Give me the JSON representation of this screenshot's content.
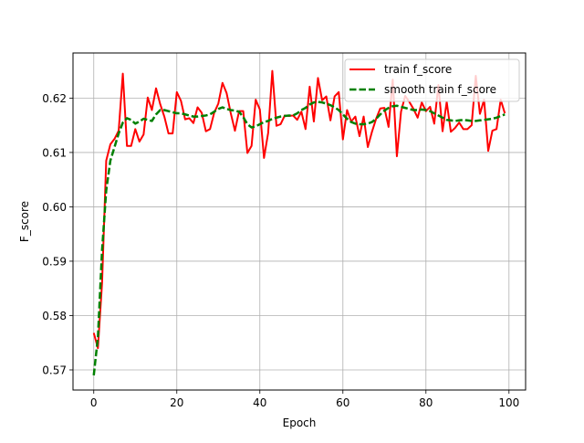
{
  "chart_data": {
    "type": "line",
    "title": "",
    "xlabel": "Epoch",
    "ylabel": "F_score",
    "xlim": [
      -5,
      104
    ],
    "ylim": [
      0.5663,
      0.6283
    ],
    "xticks": [
      0,
      20,
      40,
      60,
      80,
      100
    ],
    "xtick_labels": [
      "0",
      "20",
      "40",
      "60",
      "80",
      "100"
    ],
    "yticks": [
      0.57,
      0.58,
      0.59,
      0.6,
      0.61,
      0.62
    ],
    "ytick_labels": [
      "0.57",
      "0.58",
      "0.59",
      "0.60",
      "0.61",
      "0.62"
    ],
    "grid": true,
    "legend": "top-right",
    "x": [
      0,
      1,
      2,
      3,
      4,
      5,
      6,
      7,
      8,
      9,
      10,
      11,
      12,
      13,
      14,
      15,
      16,
      17,
      18,
      19,
      20,
      21,
      22,
      23,
      24,
      25,
      26,
      27,
      28,
      29,
      30,
      31,
      32,
      33,
      34,
      35,
      36,
      37,
      38,
      39,
      40,
      41,
      42,
      43,
      44,
      45,
      46,
      47,
      48,
      49,
      50,
      51,
      52,
      53,
      54,
      55,
      56,
      57,
      58,
      59,
      60,
      61,
      62,
      63,
      64,
      65,
      66,
      67,
      68,
      69,
      70,
      71,
      72,
      73,
      74,
      75,
      76,
      77,
      78,
      79,
      80,
      81,
      82,
      83,
      84,
      85,
      86,
      87,
      88,
      89,
      90,
      91,
      92,
      93,
      94,
      95,
      96,
      97,
      98,
      99
    ],
    "series": [
      {
        "name": "train f_score",
        "color": "#ff0000",
        "style": "solid",
        "values": [
          0.5768,
          0.574,
          0.586,
          0.6085,
          0.6115,
          0.6125,
          0.614,
          0.6245,
          0.6112,
          0.6112,
          0.6143,
          0.612,
          0.6133,
          0.6201,
          0.6178,
          0.6218,
          0.6189,
          0.6166,
          0.6135,
          0.6135,
          0.6211,
          0.6195,
          0.6161,
          0.6163,
          0.6154,
          0.6183,
          0.6173,
          0.6139,
          0.6143,
          0.6173,
          0.619,
          0.6228,
          0.6209,
          0.6172,
          0.614,
          0.6176,
          0.6176,
          0.6099,
          0.6112,
          0.6197,
          0.6179,
          0.609,
          0.6136,
          0.625,
          0.6149,
          0.6152,
          0.6168,
          0.6167,
          0.6168,
          0.616,
          0.6175,
          0.6143,
          0.6221,
          0.6157,
          0.6237,
          0.6196,
          0.6203,
          0.6159,
          0.6203,
          0.6211,
          0.6124,
          0.6178,
          0.6157,
          0.6166,
          0.613,
          0.6166,
          0.611,
          0.6138,
          0.6162,
          0.6181,
          0.6182,
          0.6147,
          0.6234,
          0.6093,
          0.6175,
          0.6204,
          0.6193,
          0.618,
          0.6164,
          0.6192,
          0.6176,
          0.6184,
          0.6153,
          0.6224,
          0.6139,
          0.6193,
          0.6138,
          0.6145,
          0.6155,
          0.6143,
          0.6143,
          0.615,
          0.6241,
          0.6171,
          0.6197,
          0.6103,
          0.614,
          0.6143,
          0.6197,
          0.6172
        ]
      },
      {
        "name": "smooth train f_score",
        "color": "#008000",
        "style": "dashed",
        "values": [
          0.569,
          0.576,
          0.592,
          0.603,
          0.6085,
          0.611,
          0.6135,
          0.6155,
          0.6163,
          0.616,
          0.6153,
          0.6157,
          0.6162,
          0.616,
          0.6158,
          0.617,
          0.6178,
          0.6178,
          0.6176,
          0.6174,
          0.6172,
          0.6172,
          0.617,
          0.6168,
          0.6166,
          0.6166,
          0.6167,
          0.6168,
          0.617,
          0.6175,
          0.618,
          0.6183,
          0.618,
          0.6178,
          0.6177,
          0.6175,
          0.6165,
          0.6152,
          0.6146,
          0.6148,
          0.6152,
          0.6156,
          0.6158,
          0.6162,
          0.6164,
          0.6166,
          0.6167,
          0.6168,
          0.6168,
          0.6172,
          0.6178,
          0.6182,
          0.6188,
          0.6192,
          0.6193,
          0.6192,
          0.619,
          0.6187,
          0.6183,
          0.6178,
          0.617,
          0.6162,
          0.6156,
          0.6153,
          0.6152,
          0.6152,
          0.6153,
          0.6156,
          0.6162,
          0.617,
          0.6177,
          0.6182,
          0.6185,
          0.6186,
          0.6184,
          0.6182,
          0.618,
          0.6178,
          0.6178,
          0.6179,
          0.6178,
          0.6176,
          0.6172,
          0.6168,
          0.6164,
          0.616,
          0.6159,
          0.6158,
          0.6159,
          0.616,
          0.6159,
          0.6158,
          0.6158,
          0.6159,
          0.616,
          0.6161,
          0.6162,
          0.6164,
          0.6167,
          0.617
        ]
      }
    ]
  }
}
